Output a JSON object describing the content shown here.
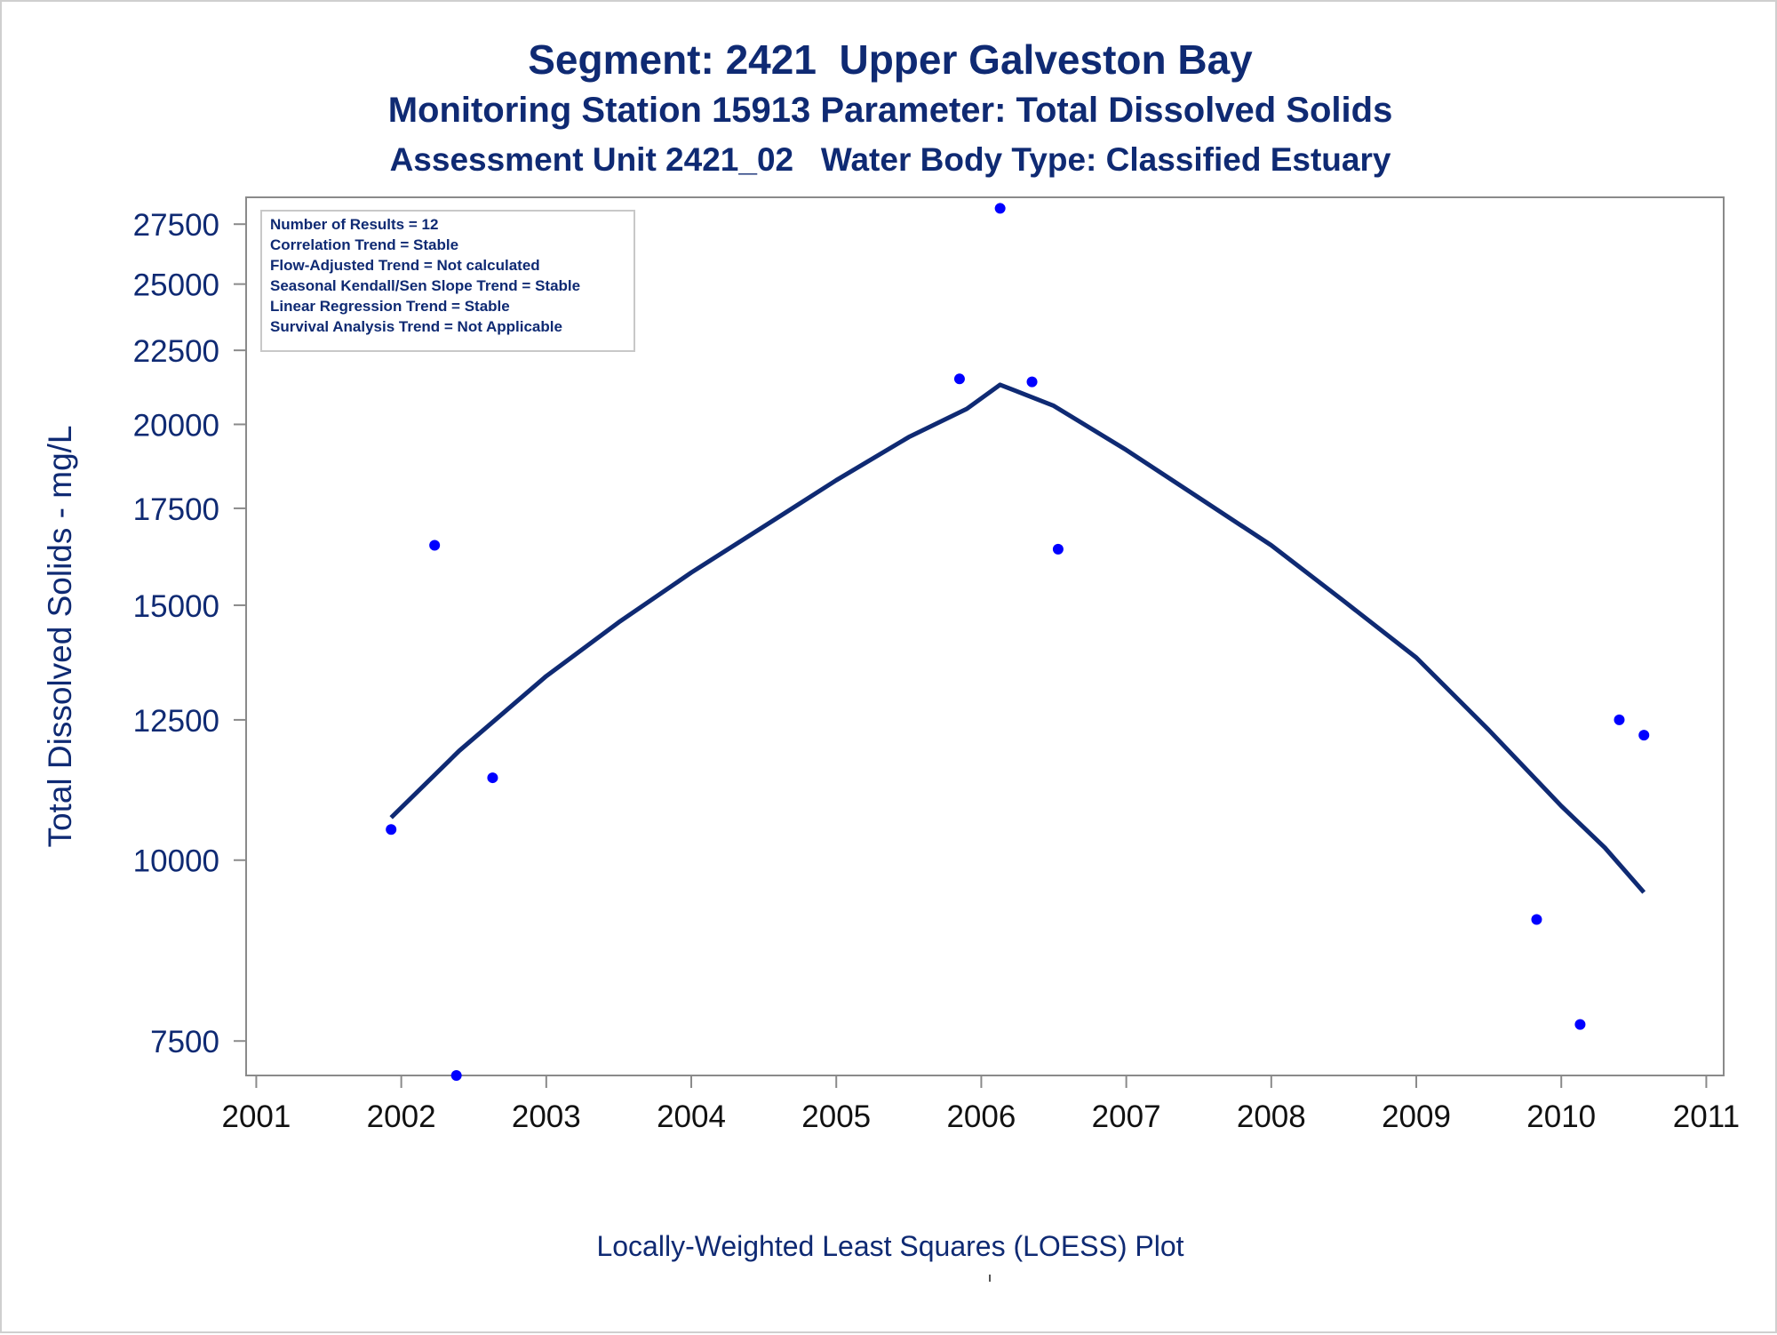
{
  "titles": {
    "line1": "Segment: 2421  Upper Galveston Bay",
    "line2": "Monitoring Station 15913 Parameter: Total Dissolved Solids",
    "line3": "Assessment Unit 2421_02   Water Body Type: Classified Estuary"
  },
  "x_caption": "Locally-Weighted Least Squares (LOESS) Plot",
  "colors": {
    "title": "#0f2a73",
    "points": "#0000ff",
    "loess_line": "#0f2a73",
    "axis": "#8a8a8a"
  },
  "chart_data": {
    "type": "scatter",
    "title": "Segment: 2421  Upper Galveston Bay",
    "xlabel": "",
    "ylabel": "Total Dissolved Solids - mg/L",
    "y_scale": "log",
    "xlim": [
      2000.93,
      2011.12
    ],
    "ylim": [
      7100,
      28700
    ],
    "x_ticks": [
      "2001",
      "2002",
      "2003",
      "2004",
      "2005",
      "2006",
      "2007",
      "2008",
      "2009",
      "2010",
      "2011"
    ],
    "y_ticks": [
      "7500",
      "10000",
      "12500",
      "15000",
      "17500",
      "20000",
      "22500",
      "25000",
      "27500"
    ],
    "grid": false,
    "legend_box": {
      "placement": "top-left",
      "lines": [
        "Number of Results = 12",
        "Correlation Trend = Stable",
        "Flow-Adjusted Trend = Not calculated",
        "Seasonal Kendall/Sen Slope Trend = Stable",
        "Linear Regression Trend = Stable",
        "Survival Analysis Trend = Not Applicable"
      ]
    },
    "series": [
      {
        "kind": "points",
        "x": [
          2001.93,
          2002.23,
          2002.38,
          2002.63,
          2005.85,
          2006.13,
          2006.35,
          2006.53,
          2009.83,
          2010.13,
          2010.4,
          2010.57
        ],
        "y": [
          10500,
          16500,
          7100,
          11400,
          21500,
          28200,
          21400,
          16400,
          9100,
          7700,
          12500,
          12200
        ]
      },
      {
        "kind": "loess",
        "x": [
          2001.93,
          2002.4,
          2003.0,
          2003.5,
          2004.0,
          2004.5,
          2005.0,
          2005.5,
          2005.9,
          2006.13,
          2006.5,
          2007.0,
          2007.5,
          2008.0,
          2008.5,
          2009.0,
          2009.5,
          2010.0,
          2010.3,
          2010.57
        ],
        "y": [
          10700,
          11900,
          13400,
          14600,
          15800,
          17000,
          18300,
          19600,
          20500,
          21300,
          20600,
          19200,
          17800,
          16500,
          15100,
          13800,
          12300,
          10900,
          10200,
          9500
        ]
      }
    ]
  }
}
